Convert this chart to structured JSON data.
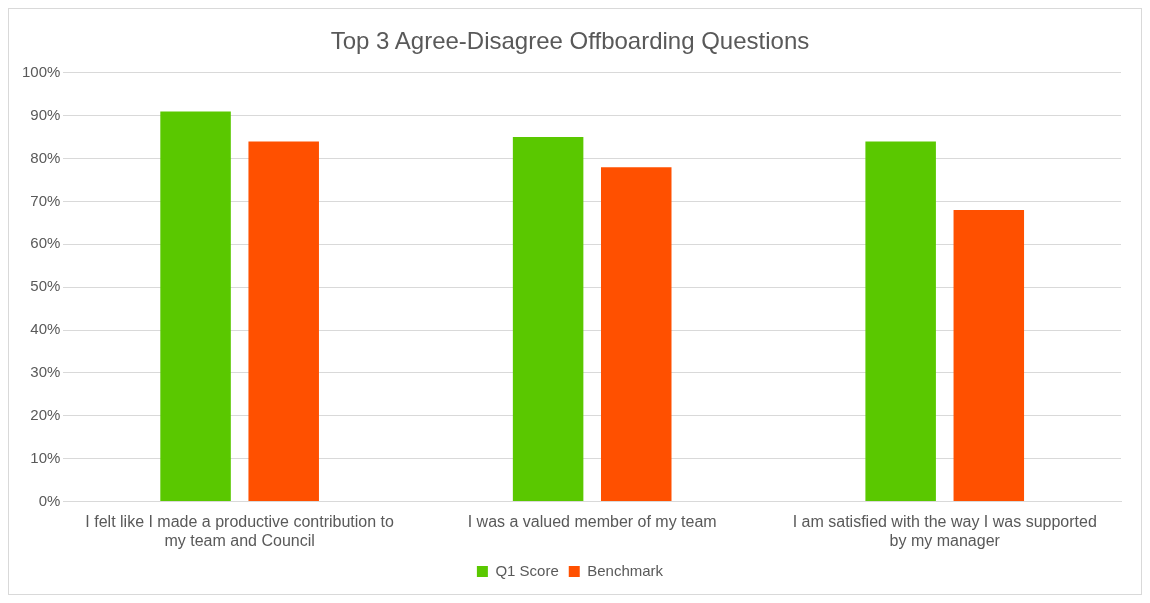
{
  "chart_data": {
    "type": "bar",
    "title": "Top 3 Agree-Disagree Offboarding Questions",
    "categories": [
      "I felt like I made a productive contribution to my team and Council",
      "I was a valued member of my team",
      "I am satisfied with the way I was supported by my manager"
    ],
    "series": [
      {
        "name": "Q1 Score",
        "color": "#5ac800",
        "values": [
          91,
          85,
          84
        ]
      },
      {
        "name": "Benchmark",
        "color": "#ff5000",
        "values": [
          84,
          78,
          68
        ]
      }
    ],
    "ylim": [
      0,
      100
    ],
    "yticks": [
      {
        "value": 0,
        "label": "0%"
      },
      {
        "value": 10,
        "label": "10%"
      },
      {
        "value": 20,
        "label": "20%"
      },
      {
        "value": 30,
        "label": "30%"
      },
      {
        "value": 40,
        "label": "40%"
      },
      {
        "value": 50,
        "label": "50%"
      },
      {
        "value": 60,
        "label": "60%"
      },
      {
        "value": 70,
        "label": "70%"
      },
      {
        "value": 80,
        "label": "80%"
      },
      {
        "value": 90,
        "label": "90%"
      },
      {
        "value": 100,
        "label": "100%"
      }
    ],
    "grid": "y",
    "legend": "bottom"
  }
}
